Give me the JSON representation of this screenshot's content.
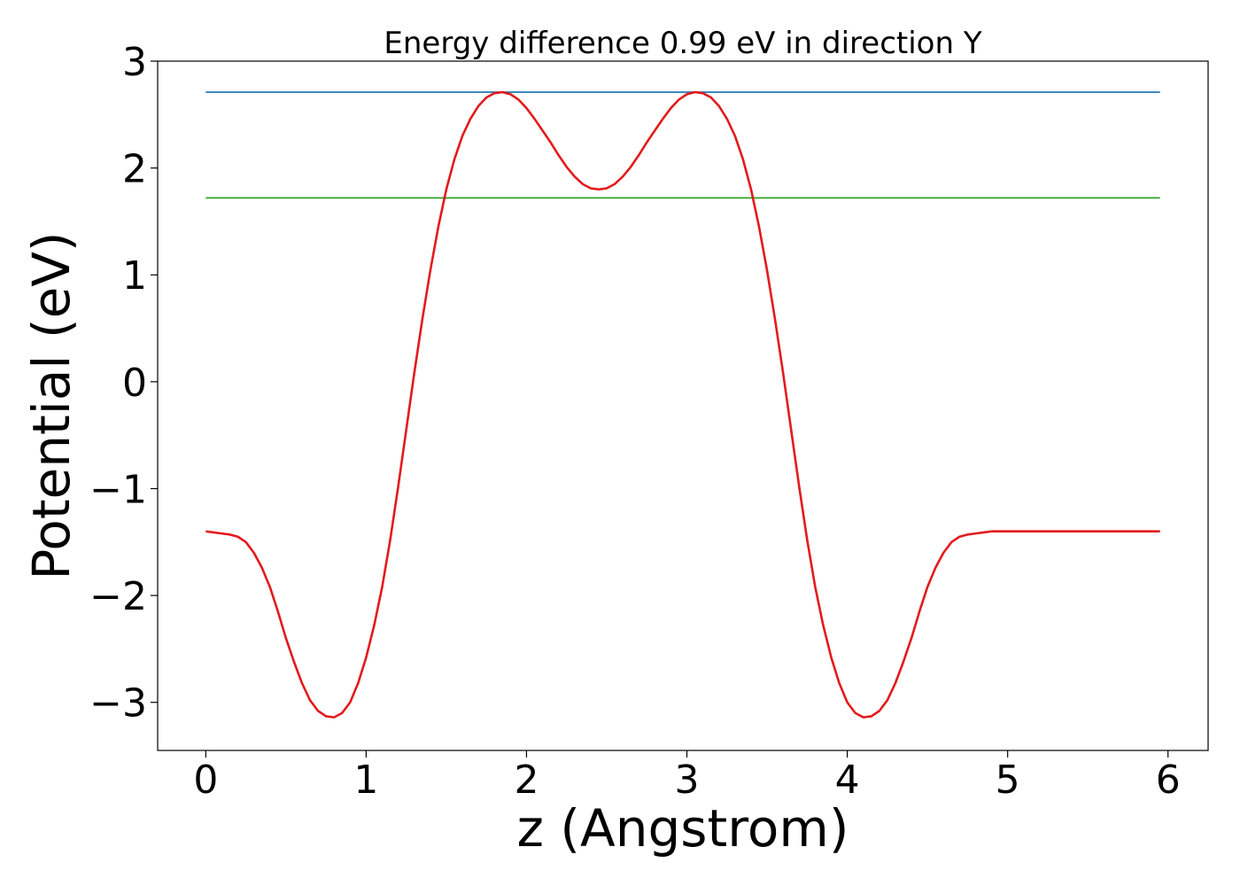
{
  "chart_data": {
    "type": "line",
    "title": "Energy difference 0.99 eV in direction Y",
    "xlabel": "z (Angstrom)",
    "ylabel": "Potential (eV)",
    "xlim": [
      -0.3,
      6.25
    ],
    "ylim": [
      -3.45,
      3.0
    ],
    "xticks": [
      0,
      1,
      2,
      3,
      4,
      5,
      6
    ],
    "xtick_labels": [
      "0",
      "1",
      "2",
      "3",
      "4",
      "5",
      "6"
    ],
    "yticks": [
      3,
      2,
      1,
      0,
      -1,
      -2,
      -3
    ],
    "ytick_labels": [
      "3",
      "2",
      "1",
      "0",
      "−1",
      "−2",
      "−3"
    ],
    "grid": false,
    "legend": "none",
    "colors": {
      "potential": "#e31a1c",
      "max_level": "#1f78b4",
      "min_level": "#33a02c"
    },
    "series": [
      {
        "x": [
          0.0,
          0.05,
          0.1,
          0.15,
          0.2,
          0.25,
          0.3,
          0.35,
          0.4,
          0.45,
          0.5,
          0.55,
          0.6,
          0.65,
          0.7,
          0.75,
          0.8,
          0.85,
          0.9,
          0.95,
          1.0,
          1.05,
          1.1,
          1.15,
          1.2,
          1.25,
          1.3,
          1.35,
          1.4,
          1.45,
          1.5,
          1.55,
          1.6,
          1.65,
          1.7,
          1.75,
          1.8,
          1.85,
          1.9,
          1.95,
          2.0,
          2.05,
          2.1,
          2.15,
          2.2,
          2.25,
          2.3,
          2.35,
          2.4,
          2.45,
          2.5,
          2.55,
          2.6,
          2.65,
          2.7,
          2.75,
          2.8,
          2.85,
          2.9,
          2.95,
          3.0,
          3.05,
          3.1,
          3.15,
          3.2,
          3.25,
          3.3,
          3.35,
          3.4,
          3.45,
          3.5,
          3.55,
          3.6,
          3.65,
          3.7,
          3.75,
          3.8,
          3.85,
          3.9,
          3.95,
          4.0,
          4.05,
          4.1,
          4.15,
          4.2,
          4.25,
          4.3,
          4.35,
          4.4,
          4.45,
          4.5,
          4.55,
          4.6,
          4.65,
          4.7,
          4.75,
          4.8,
          4.85,
          4.9,
          4.95,
          5.0,
          5.05,
          5.1,
          5.15,
          5.2,
          5.25,
          5.3,
          5.35,
          5.4,
          5.45,
          5.5,
          5.55,
          5.6,
          5.65,
          5.7,
          5.75,
          5.8,
          5.85,
          5.9,
          5.95
        ],
        "values": [
          -1.4,
          -1.41,
          -1.42,
          -1.43,
          -1.45,
          -1.5,
          -1.6,
          -1.74,
          -1.92,
          -2.15,
          -2.4,
          -2.62,
          -2.82,
          -2.98,
          -3.08,
          -3.13,
          -3.14,
          -3.1,
          -3.0,
          -2.82,
          -2.58,
          -2.28,
          -1.92,
          -1.48,
          -0.98,
          -0.45,
          0.08,
          0.58,
          1.04,
          1.45,
          1.8,
          2.08,
          2.3,
          2.46,
          2.58,
          2.66,
          2.7,
          2.71,
          2.69,
          2.64,
          2.56,
          2.46,
          2.35,
          2.24,
          2.12,
          2.01,
          1.92,
          1.85,
          1.81,
          1.8,
          1.81,
          1.85,
          1.92,
          2.01,
          2.12,
          2.24,
          2.35,
          2.46,
          2.56,
          2.64,
          2.69,
          2.71,
          2.7,
          2.66,
          2.58,
          2.46,
          2.3,
          2.08,
          1.8,
          1.45,
          1.04,
          0.58,
          0.08,
          -0.45,
          -0.98,
          -1.48,
          -1.92,
          -2.28,
          -2.58,
          -2.82,
          -3.0,
          -3.1,
          -3.14,
          -3.13,
          -3.08,
          -2.98,
          -2.82,
          -2.62,
          -2.4,
          -2.15,
          -1.92,
          -1.74,
          -1.6,
          -1.5,
          -1.45,
          -1.43,
          -1.42,
          -1.41,
          -1.4,
          -1.4,
          -1.4,
          -1.4,
          -1.4,
          -1.4,
          -1.4,
          -1.4,
          -1.4,
          -1.4,
          -1.4,
          -1.4,
          -1.4,
          -1.4,
          -1.4,
          -1.4,
          -1.4,
          -1.4,
          -1.4,
          -1.4,
          -1.4,
          -1.4
        ],
        "color": "#e31a1c"
      },
      {
        "x": [
          0.0,
          5.95
        ],
        "values": [
          2.71,
          2.71
        ],
        "color": "#1f78b4"
      },
      {
        "x": [
          0.0,
          5.95
        ],
        "values": [
          1.72,
          1.72
        ],
        "color": "#33a02c"
      }
    ]
  }
}
